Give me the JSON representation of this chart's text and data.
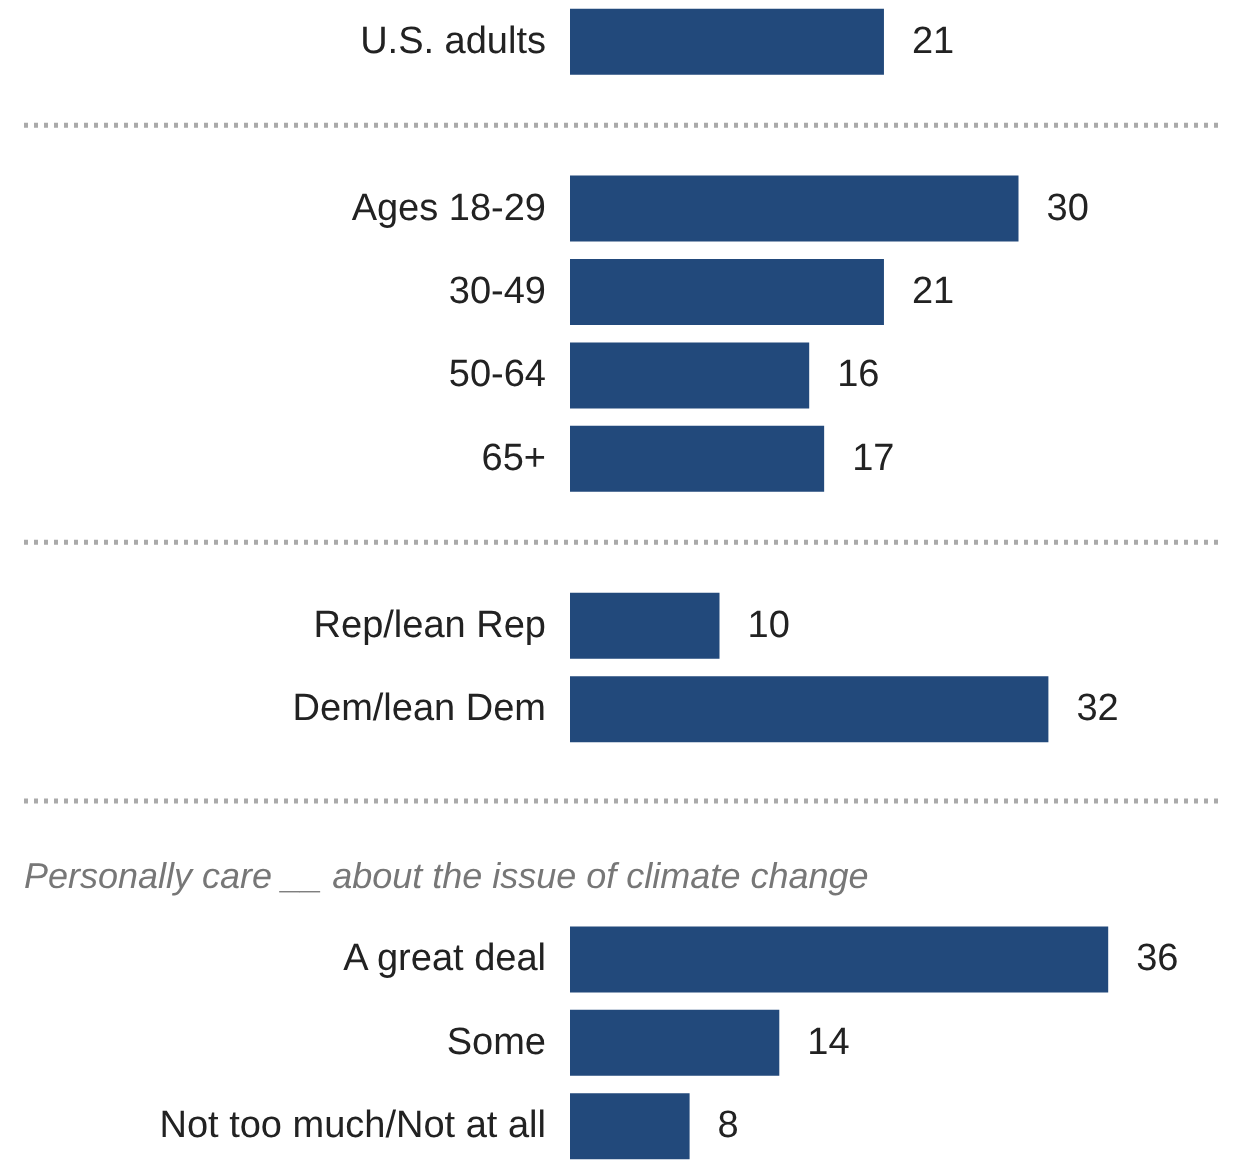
{
  "chart_data": {
    "type": "bar",
    "orientation": "horizontal",
    "categories": [
      "U.S. adults",
      null,
      "Ages 18-29",
      "30-49",
      "50-64",
      "65+",
      null,
      "Rep/lean Rep",
      "Dem/lean Dem",
      null,
      null,
      "A great deal",
      "Some",
      "Not too much/Not at all"
    ],
    "values": [
      21,
      null,
      30,
      21,
      16,
      17,
      null,
      10,
      32,
      null,
      null,
      36,
      14,
      8
    ],
    "color": "#22497b",
    "data_labels": true,
    "annotations": [
      "Personally care __ about the issue of climate change"
    ]
  }
}
